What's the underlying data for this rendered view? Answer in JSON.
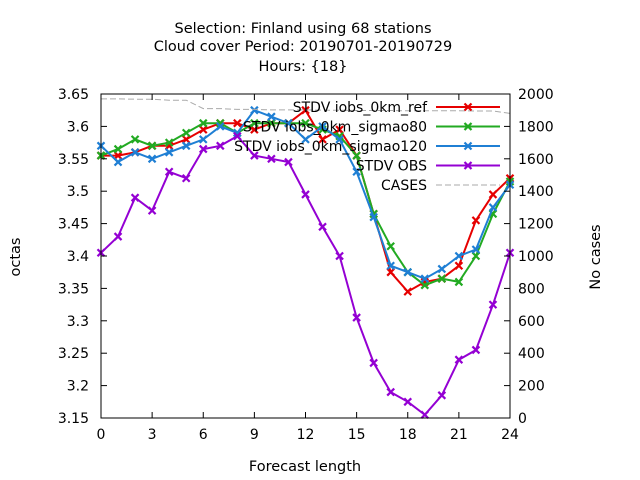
{
  "chart_data": {
    "type": "line",
    "title_lines": [
      "Selection: Finland using    68 stations",
      "Cloud cover   Period: 20190701-20190729",
      "Hours: {18}"
    ],
    "xlabel": "Forecast length",
    "ylabel": "octas",
    "y2label": "No cases",
    "xlim": [
      0,
      24
    ],
    "ylim": [
      3.15,
      3.65
    ],
    "y2lim": [
      0,
      2000
    ],
    "x_ticks": [
      0,
      3,
      6,
      9,
      12,
      15,
      18,
      21,
      24
    ],
    "y_ticks": [
      3.15,
      3.2,
      3.25,
      3.3,
      3.35,
      3.4,
      3.45,
      3.5,
      3.55,
      3.6,
      3.65
    ],
    "y_tick_labels": [
      "3.15",
      "3.2",
      "3.25",
      "3.3",
      "3.35",
      "3.4",
      "3.45",
      "3.5",
      "3.55",
      "3.6",
      "3.65"
    ],
    "y2_ticks": [
      0,
      200,
      400,
      600,
      800,
      1000,
      1200,
      1400,
      1600,
      1800,
      2000
    ],
    "x": [
      0,
      1,
      2,
      3,
      4,
      5,
      6,
      7,
      8,
      9,
      10,
      11,
      12,
      13,
      14,
      15,
      16,
      17,
      18,
      19,
      20,
      21,
      22,
      23,
      24
    ],
    "legend_position": "top-right",
    "grid": false,
    "series": [
      {
        "name": "STDV iobs_0km_ref",
        "color": "#e60000",
        "marker": "x",
        "axis": "left",
        "values": [
          3.555,
          3.555,
          3.56,
          3.57,
          3.57,
          3.58,
          3.595,
          3.605,
          3.605,
          3.595,
          3.605,
          3.605,
          3.625,
          3.58,
          3.595,
          3.555,
          3.465,
          3.375,
          3.345,
          3.36,
          3.365,
          3.385,
          3.455,
          3.495,
          3.52
        ]
      },
      {
        "name": "STDV iobs_0km_sigmao80",
        "color": "#22aa22",
        "marker": "x",
        "axis": "left",
        "values": [
          3.555,
          3.565,
          3.58,
          3.57,
          3.575,
          3.59,
          3.605,
          3.605,
          3.59,
          3.605,
          3.605,
          3.605,
          3.605,
          3.595,
          3.585,
          3.555,
          3.465,
          3.415,
          3.375,
          3.355,
          3.365,
          3.36,
          3.4,
          3.465,
          3.515
        ]
      },
      {
        "name": "STDV iobs_0km_sigmao120",
        "color": "#1f7fd4",
        "marker": "x",
        "axis": "left",
        "values": [
          3.57,
          3.545,
          3.56,
          3.55,
          3.56,
          3.57,
          3.58,
          3.6,
          3.59,
          3.625,
          3.615,
          3.605,
          3.58,
          3.6,
          3.58,
          3.53,
          3.46,
          3.385,
          3.375,
          3.365,
          3.38,
          3.4,
          3.41,
          3.475,
          3.51
        ]
      },
      {
        "name": "STDV OBS",
        "color": "#9400d3",
        "marker": "x",
        "axis": "left",
        "values": [
          3.405,
          3.43,
          3.49,
          3.47,
          3.53,
          3.52,
          3.565,
          3.57,
          3.585,
          3.555,
          3.55,
          3.545,
          3.495,
          3.445,
          3.4,
          3.305,
          3.235,
          3.19,
          3.175,
          3.155,
          3.185,
          3.24,
          3.255,
          3.325,
          3.405
        ]
      },
      {
        "name": "CASES",
        "color": "#aaaaaa",
        "marker": "none",
        "dash": "dashed",
        "axis": "right",
        "values": [
          1970,
          1970,
          1968,
          1968,
          1962,
          1962,
          1910,
          1910,
          1905,
          1905,
          1902,
          1902,
          1902,
          1900,
          1900,
          1898,
          1898,
          1898,
          1896,
          1896,
          1896,
          1896,
          1895,
          1895,
          1880
        ]
      }
    ]
  }
}
